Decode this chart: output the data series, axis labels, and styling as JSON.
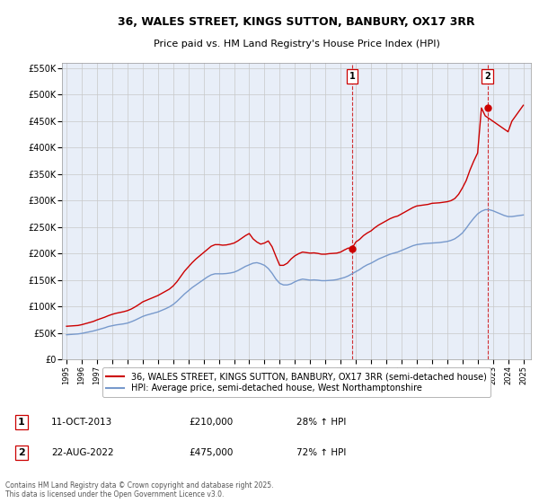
{
  "title": "36, WALES STREET, KINGS SUTTON, BANBURY, OX17 3RR",
  "subtitle": "Price paid vs. HM Land Registry's House Price Index (HPI)",
  "ylim": [
    0,
    560000
  ],
  "yticks": [
    0,
    50000,
    100000,
    150000,
    200000,
    250000,
    300000,
    350000,
    400000,
    450000,
    500000,
    550000
  ],
  "ytick_labels": [
    "£0",
    "£50K",
    "£100K",
    "£150K",
    "£200K",
    "£250K",
    "£300K",
    "£350K",
    "£400K",
    "£450K",
    "£500K",
    "£550K"
  ],
  "xlim_start": 1994.7,
  "xlim_end": 2025.5,
  "plot_bg_color": "#e8eef8",
  "grid_color": "#c8c8c8",
  "red_line_color": "#cc0000",
  "blue_line_color": "#7799cc",
  "sale1_x": 2013.78,
  "sale1_y": 210000,
  "sale2_x": 2022.64,
  "sale2_y": 475000,
  "legend_label_red": "36, WALES STREET, KINGS SUTTON, BANBURY, OX17 3RR (semi-detached house)",
  "legend_label_blue": "HPI: Average price, semi-detached house, West Northamptonshire",
  "table_row1": [
    "1",
    "11-OCT-2013",
    "£210,000",
    "28% ↑ HPI"
  ],
  "table_row2": [
    "2",
    "22-AUG-2022",
    "£475,000",
    "72% ↑ HPI"
  ],
  "footnote": "Contains HM Land Registry data © Crown copyright and database right 2025.\nThis data is licensed under the Open Government Licence v3.0.",
  "hpi_years": [
    1995.0,
    1995.25,
    1995.5,
    1995.75,
    1996.0,
    1996.25,
    1996.5,
    1996.75,
    1997.0,
    1997.25,
    1997.5,
    1997.75,
    1998.0,
    1998.25,
    1998.5,
    1998.75,
    1999.0,
    1999.25,
    1999.5,
    1999.75,
    2000.0,
    2000.25,
    2000.5,
    2000.75,
    2001.0,
    2001.25,
    2001.5,
    2001.75,
    2002.0,
    2002.25,
    2002.5,
    2002.75,
    2003.0,
    2003.25,
    2003.5,
    2003.75,
    2004.0,
    2004.25,
    2004.5,
    2004.75,
    2005.0,
    2005.25,
    2005.5,
    2005.75,
    2006.0,
    2006.25,
    2006.5,
    2006.75,
    2007.0,
    2007.25,
    2007.5,
    2007.75,
    2008.0,
    2008.25,
    2008.5,
    2008.75,
    2009.0,
    2009.25,
    2009.5,
    2009.75,
    2010.0,
    2010.25,
    2010.5,
    2010.75,
    2011.0,
    2011.25,
    2011.5,
    2011.75,
    2012.0,
    2012.25,
    2012.5,
    2012.75,
    2013.0,
    2013.25,
    2013.5,
    2013.75,
    2014.0,
    2014.25,
    2014.5,
    2014.75,
    2015.0,
    2015.25,
    2015.5,
    2015.75,
    2016.0,
    2016.25,
    2016.5,
    2016.75,
    2017.0,
    2017.25,
    2017.5,
    2017.75,
    2018.0,
    2018.25,
    2018.5,
    2018.75,
    2019.0,
    2019.25,
    2019.5,
    2019.75,
    2020.0,
    2020.25,
    2020.5,
    2020.75,
    2021.0,
    2021.25,
    2021.5,
    2021.75,
    2022.0,
    2022.25,
    2022.5,
    2022.75,
    2023.0,
    2023.25,
    2023.5,
    2023.75,
    2024.0,
    2024.25,
    2024.5,
    2024.75,
    2025.0
  ],
  "hpi_values": [
    47000,
    47500,
    48000,
    48500,
    49500,
    51000,
    52500,
    54000,
    56000,
    58000,
    60000,
    62500,
    64000,
    65500,
    66500,
    67500,
    69000,
    71500,
    74500,
    78000,
    81500,
    84000,
    86000,
    88000,
    90000,
    93000,
    96000,
    99500,
    104000,
    110000,
    117000,
    124000,
    130000,
    136000,
    141000,
    146000,
    151000,
    156000,
    160000,
    162000,
    162000,
    162000,
    162500,
    163500,
    165000,
    168000,
    172000,
    176000,
    179000,
    182000,
    183000,
    181000,
    178000,
    172000,
    163000,
    152000,
    144000,
    141000,
    141000,
    143000,
    147000,
    150000,
    152000,
    151000,
    150000,
    150500,
    150000,
    149000,
    149000,
    149500,
    150000,
    151000,
    153000,
    155000,
    158000,
    162000,
    166000,
    170000,
    175000,
    179000,
    182000,
    186000,
    190000,
    193000,
    196000,
    199000,
    201000,
    203000,
    206000,
    209000,
    212000,
    215000,
    217000,
    218000,
    219000,
    219500,
    220000,
    220500,
    221000,
    222000,
    223000,
    225000,
    228000,
    233000,
    239000,
    248000,
    258000,
    267000,
    275000,
    280000,
    283000,
    283000,
    281000,
    278000,
    275000,
    272000,
    270000,
    270000,
    271000,
    272000,
    273000
  ],
  "red_years": [
    1995.0,
    1995.25,
    1995.5,
    1995.75,
    1996.0,
    1996.25,
    1996.5,
    1996.75,
    1997.0,
    1997.25,
    1997.5,
    1997.75,
    1998.0,
    1998.25,
    1998.5,
    1998.75,
    1999.0,
    1999.25,
    1999.5,
    1999.75,
    2000.0,
    2000.25,
    2000.5,
    2000.75,
    2001.0,
    2001.25,
    2001.5,
    2001.75,
    2002.0,
    2002.25,
    2002.5,
    2002.75,
    2003.0,
    2003.25,
    2003.5,
    2003.75,
    2004.0,
    2004.25,
    2004.5,
    2004.75,
    2005.0,
    2005.25,
    2005.5,
    2005.75,
    2006.0,
    2006.25,
    2006.5,
    2006.75,
    2007.0,
    2007.25,
    2007.5,
    2007.75,
    2008.0,
    2008.25,
    2008.5,
    2008.75,
    2009.0,
    2009.25,
    2009.5,
    2009.75,
    2010.0,
    2010.25,
    2010.5,
    2010.75,
    2011.0,
    2011.25,
    2011.5,
    2011.75,
    2012.0,
    2012.25,
    2012.5,
    2012.75,
    2013.0,
    2013.25,
    2013.5,
    2013.75,
    2014.0,
    2014.25,
    2014.5,
    2014.75,
    2015.0,
    2015.25,
    2015.5,
    2015.75,
    2016.0,
    2016.25,
    2016.5,
    2016.75,
    2017.0,
    2017.25,
    2017.5,
    2017.75,
    2018.0,
    2018.25,
    2018.5,
    2018.75,
    2019.0,
    2019.25,
    2019.5,
    2019.75,
    2020.0,
    2020.25,
    2020.5,
    2020.75,
    2021.0,
    2021.25,
    2021.5,
    2021.75,
    2022.0,
    2022.25,
    2022.5,
    2022.75,
    2023.0,
    2023.25,
    2023.5,
    2023.75,
    2024.0,
    2024.25,
    2024.5,
    2024.75,
    2025.0
  ],
  "red_values": [
    63000,
    63500,
    64000,
    64500,
    66000,
    68000,
    70000,
    72000,
    75000,
    77500,
    80000,
    83000,
    85500,
    87500,
    89000,
    90500,
    92500,
    95500,
    99500,
    104000,
    109000,
    112000,
    115000,
    118000,
    121000,
    125000,
    129000,
    133000,
    139000,
    147000,
    157000,
    167000,
    175000,
    183000,
    190000,
    196000,
    202000,
    208000,
    214000,
    217000,
    217000,
    216000,
    216500,
    218000,
    220000,
    224000,
    229000,
    234000,
    238000,
    228000,
    222000,
    218000,
    220000,
    224000,
    213000,
    195000,
    178000,
    178000,
    182000,
    190000,
    196000,
    200000,
    203000,
    202000,
    201000,
    201500,
    200500,
    199000,
    199000,
    200000,
    200500,
    201000,
    203000,
    207000,
    210500,
    210000,
    222000,
    227000,
    234000,
    239000,
    243000,
    249000,
    254000,
    258000,
    262000,
    266000,
    269000,
    271000,
    275000,
    279000,
    283000,
    287000,
    290000,
    291000,
    292000,
    293000,
    295000,
    295500,
    296000,
    297000,
    298000,
    300000,
    304000,
    312000,
    324000,
    338000,
    358000,
    375000,
    390000,
    475000,
    460000,
    455000,
    450000,
    445000,
    440000,
    435000,
    430000,
    450000,
    460000,
    470000,
    480000
  ]
}
